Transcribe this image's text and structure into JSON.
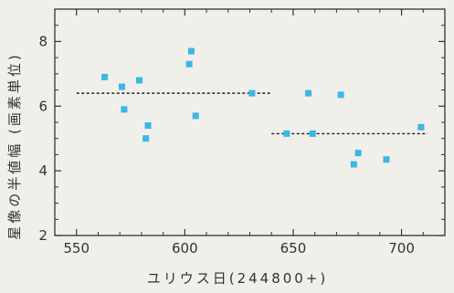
{
  "chart_data": {
    "type": "scatter",
    "title": "",
    "xlabel": "ユリウス日(244800+)",
    "ylabel": "星像の半値幅 (画素単位)",
    "xlim": [
      540,
      720
    ],
    "ylim": [
      2,
      9
    ],
    "xticks": [
      550,
      600,
      650,
      700
    ],
    "yticks": [
      2,
      4,
      6,
      8
    ],
    "grid": false,
    "marker_color": "#3ab7e6",
    "series": [
      {
        "points": [
          [
            563,
            6.9
          ],
          [
            571,
            6.6
          ],
          [
            572,
            5.9
          ],
          [
            579,
            6.8
          ],
          [
            582,
            5.0
          ],
          [
            583,
            5.4
          ],
          [
            602,
            7.3
          ],
          [
            603,
            7.7
          ],
          [
            605,
            5.7
          ],
          [
            631,
            6.4
          ],
          [
            647,
            5.15
          ],
          [
            657,
            6.4
          ],
          [
            659,
            5.15
          ],
          [
            672,
            6.35
          ],
          [
            678,
            4.2
          ],
          [
            680,
            4.55
          ],
          [
            693,
            4.35
          ],
          [
            709,
            5.35
          ]
        ]
      }
    ],
    "reference_lines": [
      {
        "x": [
          550,
          640
        ],
        "y": 6.4,
        "style": "dashed"
      },
      {
        "x": [
          640,
          712
        ],
        "y": 5.15,
        "style": "dashed"
      }
    ]
  }
}
